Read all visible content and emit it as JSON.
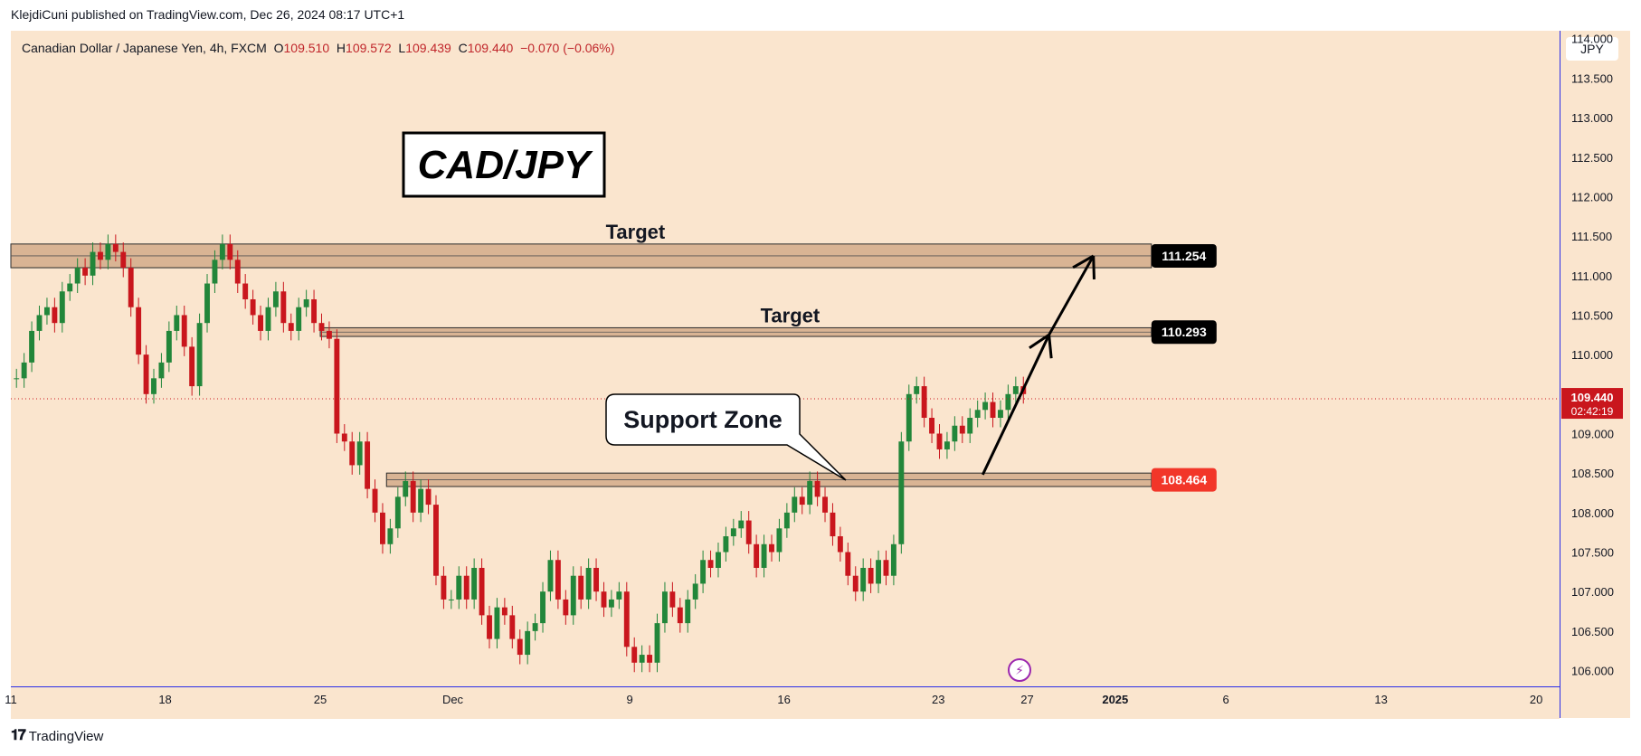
{
  "header": {
    "published_text": "KlejdiCuni published on TradingView.com, Dec 26, 2024 08:17 UTC+1"
  },
  "legend": {
    "symbol_text": "Canadian Dollar / Japanese Yen, 4h, FXCM",
    "o_label": "O",
    "o_value": "109.510",
    "h_label": "H",
    "h_value": "109.572",
    "l_label": "L",
    "l_value": "109.439",
    "c_label": "C",
    "c_value": "109.440",
    "change_text": "−0.070 (−0.06%)"
  },
  "price_axis": {
    "currency": "JPY"
  },
  "footer": {
    "brand": "TradingView"
  },
  "colors": {
    "background": "#fae5ce",
    "up": "#22863a",
    "down": "#c9161d",
    "zone": "#d9b494",
    "zone_border": "#2b2b2b",
    "axis_line": "#2a2ee8"
  },
  "chart_data": {
    "type": "candlestick",
    "title": "CAD/JPY",
    "interval": "4h",
    "ylim": [
      105.8,
      114.1
    ],
    "y_ticks": [
      106.0,
      106.5,
      107.0,
      107.5,
      108.0,
      108.5,
      109.0,
      109.5,
      110.0,
      110.5,
      111.0,
      111.5,
      112.0,
      112.5,
      113.0,
      113.5,
      114.0
    ],
    "x_ticks": [
      {
        "label": "11",
        "x": 2024.8633
      },
      {
        "label": "18",
        "x": 2024.8824
      },
      {
        "label": "25",
        "x": 2024.9016
      },
      {
        "label": "Dec",
        "x": 2024.918
      },
      {
        "label": "9",
        "x": 2024.9399
      },
      {
        "label": "16",
        "x": 2024.959
      },
      {
        "label": "23",
        "x": 2024.9781
      },
      {
        "label": "27",
        "x": 2024.9891
      },
      {
        "label": "2025",
        "x": 2025.0
      },
      {
        "label": "6",
        "x": 2025.0137
      },
      {
        "label": "13",
        "x": 2025.0329
      },
      {
        "label": "20",
        "x": 2025.0521
      }
    ],
    "xlim": [
      2024.8633,
      2025.055
    ],
    "last_price": {
      "value": "109.440",
      "countdown": "02:42:19"
    },
    "zones": [
      {
        "name": "target-zone-upper",
        "label": "Target",
        "low": 111.1,
        "high": 111.4,
        "x_start": 2024.8633,
        "x_end": 2025.0,
        "price_label": "111.254",
        "label_color": "#000000"
      },
      {
        "name": "target-zone-lower",
        "label": "Target",
        "low": 110.23,
        "high": 110.34,
        "x_start": 2024.9016,
        "x_end": 2025.0,
        "price_label": "110.293",
        "label_color": "#000000"
      },
      {
        "name": "support-zone",
        "label": "",
        "low": 108.33,
        "high": 108.5,
        "x_start": 2024.9098,
        "x_end": 2025.0,
        "price_label": "108.464",
        "label_color": "#f23629"
      }
    ],
    "annotations": [
      {
        "name": "support-zone-callout",
        "text": "Support Zone"
      },
      {
        "name": "title-box",
        "text": "CAD/JPY"
      }
    ],
    "arrow_path": [
      [
        2024.9836,
        108.48
      ],
      [
        2024.9918,
        110.25
      ],
      [
        2024.9973,
        111.25
      ]
    ],
    "candles_closes": [
      109.7,
      109.9,
      110.3,
      110.5,
      110.6,
      110.4,
      110.8,
      110.9,
      111.1,
      111.0,
      111.3,
      111.2,
      111.4,
      111.3,
      111.1,
      110.6,
      110.0,
      109.5,
      109.7,
      109.9,
      110.3,
      110.5,
      110.1,
      109.6,
      110.4,
      110.9,
      111.2,
      111.4,
      111.2,
      110.9,
      110.7,
      110.5,
      110.3,
      110.6,
      110.8,
      110.4,
      110.3,
      110.6,
      110.7,
      110.4,
      110.3,
      110.2,
      109.0,
      108.9,
      108.6,
      108.9,
      108.3,
      108.0,
      107.6,
      107.8,
      108.2,
      108.4,
      108.0,
      108.3,
      108.1,
      107.2,
      106.9,
      106.9,
      107.2,
      106.9,
      107.3,
      106.7,
      106.4,
      106.8,
      106.7,
      106.4,
      106.2,
      106.5,
      106.6,
      107.0,
      107.4,
      106.9,
      106.7,
      107.2,
      106.9,
      107.3,
      107.0,
      106.8,
      106.9,
      107.0,
      106.3,
      106.1,
      106.2,
      106.1,
      106.6,
      107.0,
      106.8,
      106.6,
      106.9,
      107.1,
      107.4,
      107.3,
      107.5,
      107.7,
      107.8,
      107.9,
      107.6,
      107.3,
      107.6,
      107.5,
      107.8,
      108.0,
      108.2,
      108.1,
      108.4,
      108.2,
      108.0,
      107.7,
      107.5,
      107.2,
      107.0,
      107.3,
      107.1,
      107.4,
      107.2,
      107.6,
      108.9,
      109.5,
      109.6,
      109.2,
      109.0,
      108.8,
      108.9,
      109.1,
      109.0,
      109.2,
      109.3,
      109.4,
      109.2,
      109.3,
      109.5,
      109.6,
      109.5
    ]
  }
}
